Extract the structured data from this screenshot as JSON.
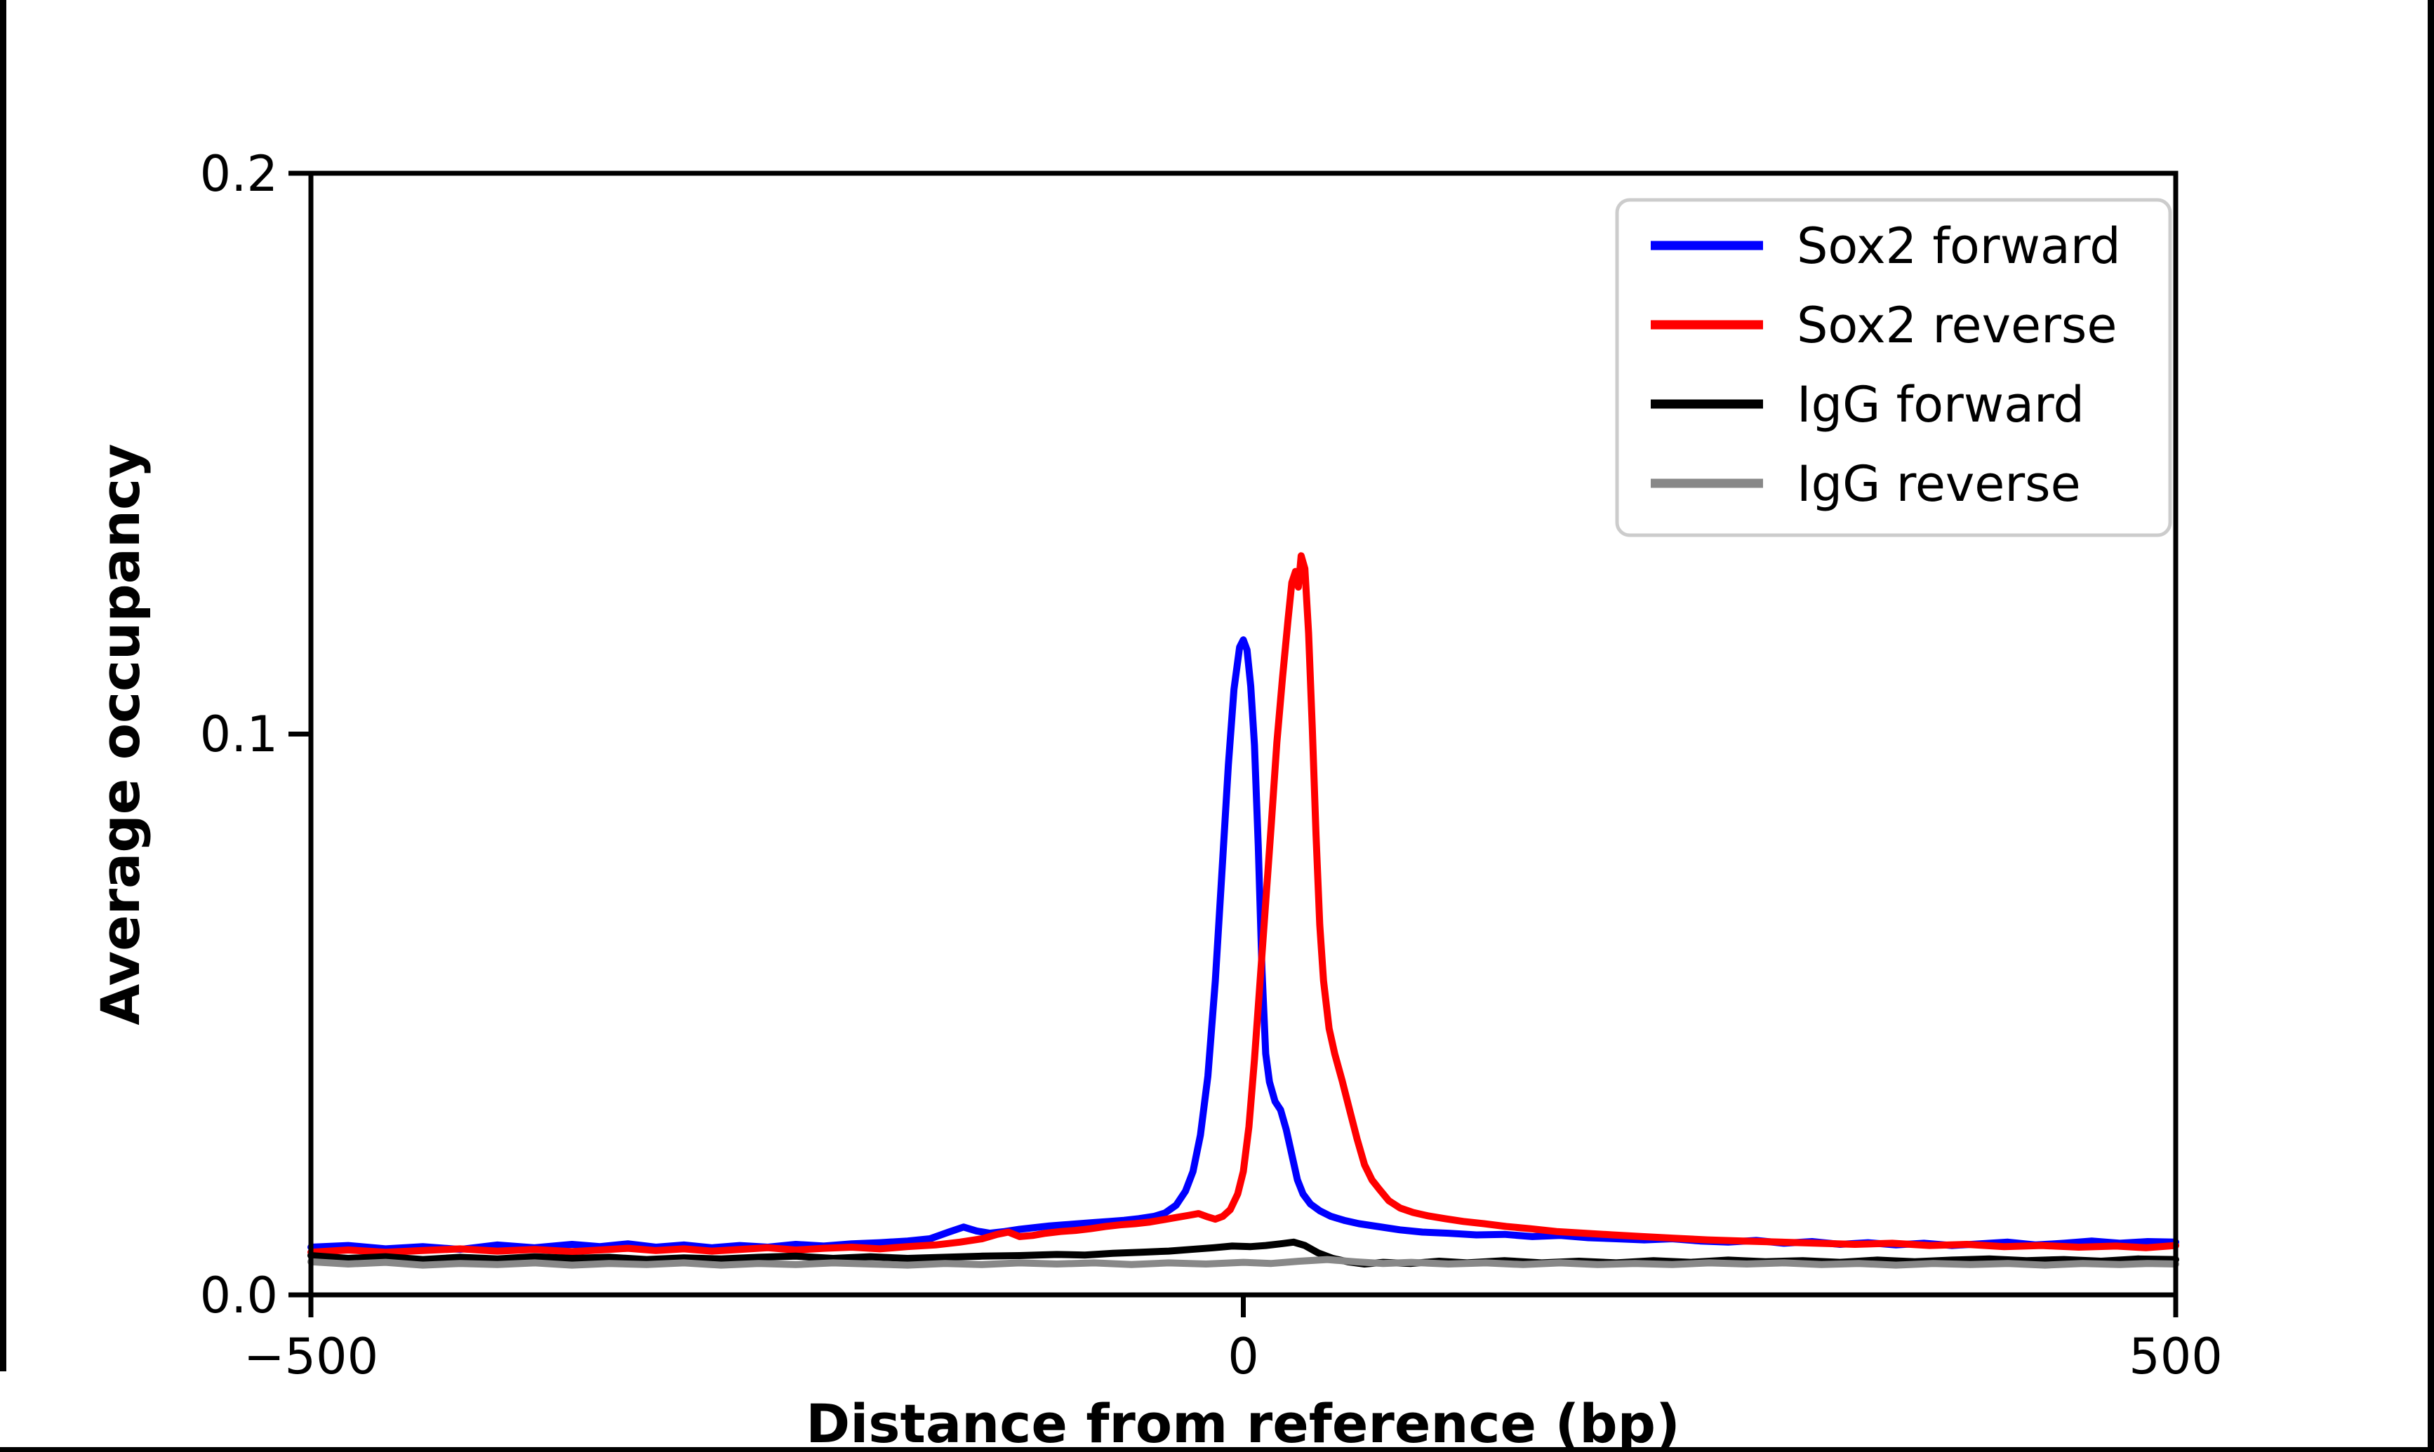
{
  "chart_data": {
    "type": "line",
    "title": "",
    "xlabel": "Distance from reference (bp)",
    "ylabel": "Average occupancy",
    "xlim": [
      -500,
      500
    ],
    "ylim": [
      0,
      0.2
    ],
    "xticks": {
      "values": [
        -500,
        0,
        500
      ],
      "labels": [
        "−500",
        "0",
        "500"
      ]
    },
    "yticks": {
      "values": [
        0,
        0.1,
        0.2
      ],
      "labels": [
        "0.0",
        "0.1",
        "0.2"
      ]
    },
    "grid": false,
    "legend": {
      "position": "upper right",
      "border_color": "#cccccc",
      "background": "#ffffff"
    },
    "axis_color": "#000000",
    "series": [
      {
        "name": "Sox2 forward",
        "color": "#0000ff",
        "points": [
          [
            -500,
            0.0085
          ],
          [
            -480,
            0.0088
          ],
          [
            -460,
            0.0082
          ],
          [
            -440,
            0.0086
          ],
          [
            -420,
            0.0081
          ],
          [
            -400,
            0.0089
          ],
          [
            -380,
            0.0084
          ],
          [
            -360,
            0.009
          ],
          [
            -345,
            0.0086
          ],
          [
            -330,
            0.0091
          ],
          [
            -315,
            0.0085
          ],
          [
            -300,
            0.0089
          ],
          [
            -285,
            0.0084
          ],
          [
            -270,
            0.0088
          ],
          [
            -255,
            0.0085
          ],
          [
            -240,
            0.009
          ],
          [
            -225,
            0.0087
          ],
          [
            -210,
            0.0091
          ],
          [
            -195,
            0.0093
          ],
          [
            -180,
            0.0096
          ],
          [
            -168,
            0.01
          ],
          [
            -158,
            0.0112
          ],
          [
            -150,
            0.0121
          ],
          [
            -143,
            0.0114
          ],
          [
            -136,
            0.011
          ],
          [
            -128,
            0.0113
          ],
          [
            -120,
            0.0117
          ],
          [
            -112,
            0.012
          ],
          [
            -104,
            0.0123
          ],
          [
            -96,
            0.0125
          ],
          [
            -88,
            0.0127
          ],
          [
            -80,
            0.0129
          ],
          [
            -72,
            0.0131
          ],
          [
            -64,
            0.0133
          ],
          [
            -56,
            0.0136
          ],
          [
            -48,
            0.014
          ],
          [
            -42,
            0.0146
          ],
          [
            -36,
            0.016
          ],
          [
            -31,
            0.0185
          ],
          [
            -27,
            0.022
          ],
          [
            -23,
            0.0285
          ],
          [
            -19,
            0.039
          ],
          [
            -15,
            0.056
          ],
          [
            -11,
            0.078
          ],
          [
            -8,
            0.0945
          ],
          [
            -5,
            0.108
          ],
          [
            -2,
            0.1155
          ],
          [
            0,
            0.1168
          ],
          [
            2,
            0.115
          ],
          [
            4,
            0.1085
          ],
          [
            6,
            0.098
          ],
          [
            8,
            0.08
          ],
          [
            10,
            0.058
          ],
          [
            12,
            0.043
          ],
          [
            14,
            0.038
          ],
          [
            17,
            0.0345
          ],
          [
            20,
            0.033
          ],
          [
            23,
            0.0295
          ],
          [
            26,
            0.025
          ],
          [
            29,
            0.0205
          ],
          [
            32,
            0.018
          ],
          [
            36,
            0.0162
          ],
          [
            41,
            0.015
          ],
          [
            47,
            0.014
          ],
          [
            54,
            0.0133
          ],
          [
            62,
            0.0127
          ],
          [
            72,
            0.0122
          ],
          [
            84,
            0.0116
          ],
          [
            96,
            0.0112
          ],
          [
            110,
            0.011
          ],
          [
            125,
            0.0107
          ],
          [
            140,
            0.0108
          ],
          [
            155,
            0.0104
          ],
          [
            170,
            0.0106
          ],
          [
            185,
            0.0102
          ],
          [
            200,
            0.01
          ],
          [
            215,
            0.0098
          ],
          [
            230,
            0.01
          ],
          [
            245,
            0.0096
          ],
          [
            260,
            0.0094
          ],
          [
            275,
            0.0097
          ],
          [
            290,
            0.0092
          ],
          [
            305,
            0.0095
          ],
          [
            320,
            0.009
          ],
          [
            335,
            0.0093
          ],
          [
            350,
            0.0089
          ],
          [
            365,
            0.0092
          ],
          [
            380,
            0.0088
          ],
          [
            395,
            0.0091
          ],
          [
            410,
            0.0094
          ],
          [
            425,
            0.0089
          ],
          [
            440,
            0.0092
          ],
          [
            455,
            0.0096
          ],
          [
            470,
            0.0092
          ],
          [
            485,
            0.0095
          ],
          [
            500,
            0.0094
          ]
        ]
      },
      {
        "name": "Sox2 reverse",
        "color": "#ff0000",
        "points": [
          [
            -500,
            0.0076
          ],
          [
            -480,
            0.008
          ],
          [
            -460,
            0.0076
          ],
          [
            -440,
            0.0079
          ],
          [
            -420,
            0.0082
          ],
          [
            -400,
            0.0078
          ],
          [
            -380,
            0.0081
          ],
          [
            -360,
            0.0077
          ],
          [
            -345,
            0.008
          ],
          [
            -330,
            0.0083
          ],
          [
            -315,
            0.0079
          ],
          [
            -300,
            0.0082
          ],
          [
            -285,
            0.0078
          ],
          [
            -270,
            0.0081
          ],
          [
            -255,
            0.0084
          ],
          [
            -240,
            0.008
          ],
          [
            -225,
            0.0083
          ],
          [
            -210,
            0.0085
          ],
          [
            -195,
            0.0082
          ],
          [
            -180,
            0.0086
          ],
          [
            -165,
            0.0089
          ],
          [
            -152,
            0.0094
          ],
          [
            -140,
            0.01
          ],
          [
            -132,
            0.0108
          ],
          [
            -126,
            0.0112
          ],
          [
            -120,
            0.0104
          ],
          [
            -113,
            0.0106
          ],
          [
            -106,
            0.011
          ],
          [
            -98,
            0.0113
          ],
          [
            -90,
            0.0115
          ],
          [
            -82,
            0.0118
          ],
          [
            -74,
            0.0122
          ],
          [
            -66,
            0.0125
          ],
          [
            -58,
            0.0127
          ],
          [
            -50,
            0.013
          ],
          [
            -43,
            0.0134
          ],
          [
            -36,
            0.0138
          ],
          [
            -29,
            0.0142
          ],
          [
            -24,
            0.0145
          ],
          [
            -19,
            0.0139
          ],
          [
            -15,
            0.0135
          ],
          [
            -11,
            0.014
          ],
          [
            -7,
            0.0152
          ],
          [
            -3,
            0.018
          ],
          [
            0,
            0.022
          ],
          [
            3,
            0.03
          ],
          [
            6,
            0.042
          ],
          [
            9,
            0.056
          ],
          [
            12,
            0.07
          ],
          [
            15,
            0.084
          ],
          [
            18,
            0.0985
          ],
          [
            21,
            0.11
          ],
          [
            24,
            0.1205
          ],
          [
            26,
            0.127
          ],
          [
            28,
            0.129
          ],
          [
            29.5,
            0.1262
          ],
          [
            31,
            0.1318
          ],
          [
            33,
            0.1295
          ],
          [
            35,
            0.118
          ],
          [
            37,
            0.101
          ],
          [
            39,
            0.082
          ],
          [
            41,
            0.066
          ],
          [
            43,
            0.056
          ],
          [
            46,
            0.0475
          ],
          [
            49,
            0.043
          ],
          [
            53,
            0.0382
          ],
          [
            57,
            0.033
          ],
          [
            61,
            0.0278
          ],
          [
            65,
            0.0232
          ],
          [
            69,
            0.0205
          ],
          [
            73,
            0.0188
          ],
          [
            78,
            0.0168
          ],
          [
            84,
            0.0155
          ],
          [
            91,
            0.0147
          ],
          [
            99,
            0.0141
          ],
          [
            108,
            0.0136
          ],
          [
            118,
            0.0131
          ],
          [
            129,
            0.0127
          ],
          [
            141,
            0.0122
          ],
          [
            154,
            0.0118
          ],
          [
            168,
            0.0113
          ],
          [
            183,
            0.011
          ],
          [
            198,
            0.0107
          ],
          [
            214,
            0.0104
          ],
          [
            231,
            0.0101
          ],
          [
            249,
            0.0098
          ],
          [
            268,
            0.0096
          ],
          [
            288,
            0.0094
          ],
          [
            308,
            0.0092
          ],
          [
            328,
            0.009
          ],
          [
            348,
            0.0092
          ],
          [
            368,
            0.0088
          ],
          [
            388,
            0.009
          ],
          [
            408,
            0.0086
          ],
          [
            428,
            0.0088
          ],
          [
            448,
            0.0085
          ],
          [
            468,
            0.0087
          ],
          [
            484,
            0.0084
          ],
          [
            500,
            0.0088
          ]
        ]
      },
      {
        "name": "IgG forward",
        "color": "#000000",
        "points": [
          [
            -500,
            0.007
          ],
          [
            -480,
            0.0065
          ],
          [
            -460,
            0.0068
          ],
          [
            -440,
            0.0063
          ],
          [
            -420,
            0.0067
          ],
          [
            -400,
            0.0064
          ],
          [
            -380,
            0.0068
          ],
          [
            -360,
            0.0065
          ],
          [
            -340,
            0.0067
          ],
          [
            -320,
            0.0063
          ],
          [
            -300,
            0.0066
          ],
          [
            -280,
            0.0064
          ],
          [
            -260,
            0.0067
          ],
          [
            -240,
            0.0069
          ],
          [
            -220,
            0.0065
          ],
          [
            -200,
            0.0068
          ],
          [
            -180,
            0.0065
          ],
          [
            -160,
            0.0067
          ],
          [
            -140,
            0.0069
          ],
          [
            -120,
            0.007
          ],
          [
            -100,
            0.0072
          ],
          [
            -85,
            0.0071
          ],
          [
            -70,
            0.0074
          ],
          [
            -55,
            0.0076
          ],
          [
            -40,
            0.0078
          ],
          [
            -28,
            0.0081
          ],
          [
            -16,
            0.0084
          ],
          [
            -6,
            0.0087
          ],
          [
            4,
            0.0086
          ],
          [
            12,
            0.0088
          ],
          [
            20,
            0.0091
          ],
          [
            27,
            0.0094
          ],
          [
            33,
            0.0088
          ],
          [
            40,
            0.0075
          ],
          [
            48,
            0.0065
          ],
          [
            56,
            0.0059
          ],
          [
            65,
            0.0055
          ],
          [
            75,
            0.0058
          ],
          [
            90,
            0.0056
          ],
          [
            105,
            0.006
          ],
          [
            120,
            0.0057
          ],
          [
            140,
            0.0061
          ],
          [
            160,
            0.0057
          ],
          [
            180,
            0.006
          ],
          [
            200,
            0.0057
          ],
          [
            220,
            0.0061
          ],
          [
            240,
            0.0058
          ],
          [
            260,
            0.0062
          ],
          [
            280,
            0.0059
          ],
          [
            300,
            0.0061
          ],
          [
            320,
            0.0058
          ],
          [
            340,
            0.0062
          ],
          [
            360,
            0.0059
          ],
          [
            380,
            0.0062
          ],
          [
            400,
            0.0064
          ],
          [
            420,
            0.0061
          ],
          [
            440,
            0.0063
          ],
          [
            460,
            0.006
          ],
          [
            480,
            0.0064
          ],
          [
            500,
            0.0063
          ]
        ]
      },
      {
        "name": "IgG reverse",
        "color": "#888888",
        "points": [
          [
            -500,
            0.0059
          ],
          [
            -480,
            0.0055
          ],
          [
            -460,
            0.0058
          ],
          [
            -440,
            0.0053
          ],
          [
            -420,
            0.0056
          ],
          [
            -400,
            0.0054
          ],
          [
            -380,
            0.0057
          ],
          [
            -360,
            0.0053
          ],
          [
            -340,
            0.0056
          ],
          [
            -320,
            0.0054
          ],
          [
            -300,
            0.0057
          ],
          [
            -280,
            0.0053
          ],
          [
            -260,
            0.0056
          ],
          [
            -240,
            0.0054
          ],
          [
            -220,
            0.0057
          ],
          [
            -200,
            0.0055
          ],
          [
            -180,
            0.0053
          ],
          [
            -160,
            0.0056
          ],
          [
            -140,
            0.0054
          ],
          [
            -120,
            0.0057
          ],
          [
            -100,
            0.0055
          ],
          [
            -80,
            0.0057
          ],
          [
            -60,
            0.0054
          ],
          [
            -40,
            0.0057
          ],
          [
            -20,
            0.0055
          ],
          [
            0,
            0.0058
          ],
          [
            15,
            0.0056
          ],
          [
            30,
            0.006
          ],
          [
            45,
            0.0063
          ],
          [
            60,
            0.0059
          ],
          [
            75,
            0.0056
          ],
          [
            90,
            0.0058
          ],
          [
            110,
            0.0055
          ],
          [
            130,
            0.0057
          ],
          [
            150,
            0.0054
          ],
          [
            170,
            0.0057
          ],
          [
            190,
            0.0054
          ],
          [
            210,
            0.0056
          ],
          [
            230,
            0.0054
          ],
          [
            250,
            0.0057
          ],
          [
            270,
            0.0055
          ],
          [
            290,
            0.0057
          ],
          [
            310,
            0.0054
          ],
          [
            330,
            0.0056
          ],
          [
            350,
            0.0053
          ],
          [
            370,
            0.0056
          ],
          [
            390,
            0.0054
          ],
          [
            410,
            0.0056
          ],
          [
            430,
            0.0053
          ],
          [
            450,
            0.0056
          ],
          [
            470,
            0.0054
          ],
          [
            485,
            0.0056
          ],
          [
            500,
            0.0055
          ]
        ]
      }
    ]
  }
}
